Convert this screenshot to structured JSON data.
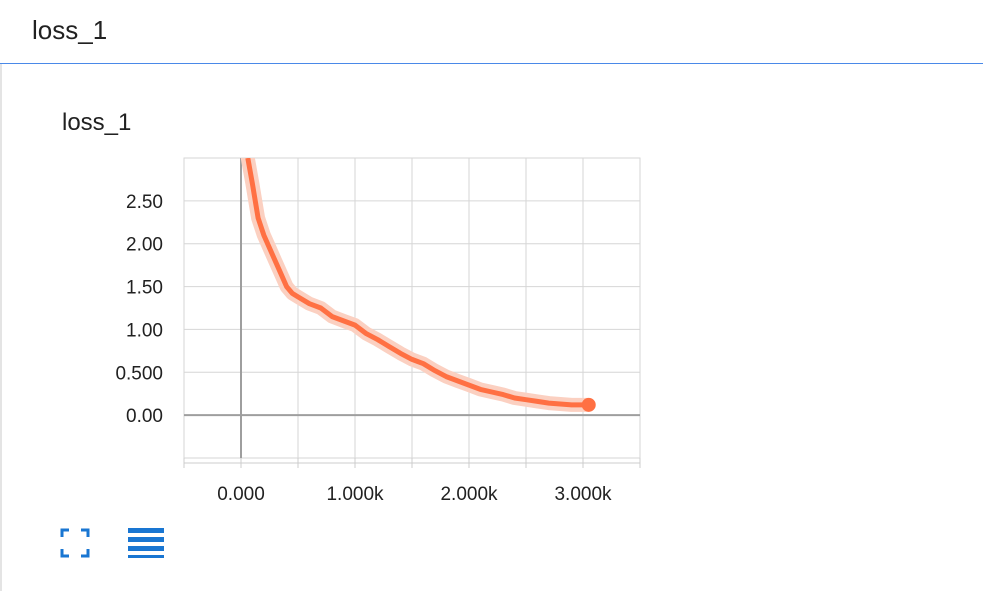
{
  "header": {
    "title": "loss_1"
  },
  "card": {
    "title": "loss_1",
    "toolbar": {
      "expand_icon": "fullscreen-icon",
      "data_icon": "list-icon"
    }
  },
  "colors": {
    "accent": "#4a89e8",
    "series": "#ff7043",
    "series_raw": "#fbd0c1",
    "grid": "#d6d6d6",
    "axis": "#9e9e9e",
    "icon": "#1976d2"
  },
  "chart_data": {
    "type": "line",
    "title": "loss_1",
    "xlabel": "",
    "ylabel": "",
    "xlim": [
      -500,
      3500
    ],
    "ylim": [
      -0.5,
      3.0
    ],
    "x_ticks": [
      0,
      1000,
      2000,
      3000
    ],
    "x_tick_labels": [
      "0.000",
      "1.000k",
      "2.000k",
      "3.000k"
    ],
    "y_ticks": [
      0,
      0.5,
      1.0,
      1.5,
      2.0,
      2.5
    ],
    "y_tick_labels": [
      "0.00",
      "0.500",
      "1.00",
      "1.50",
      "2.00",
      "2.50"
    ],
    "grid": true,
    "series": [
      {
        "x": [
          60,
          100,
          150,
          200,
          250,
          300,
          350,
          400,
          450,
          500,
          600,
          700,
          800,
          900,
          1000,
          1100,
          1200,
          1300,
          1400,
          1500,
          1600,
          1700,
          1800,
          1900,
          2000,
          2100,
          2200,
          2300,
          2400,
          2500,
          2600,
          2700,
          2800,
          2900,
          3000,
          3050
        ],
        "values": [
          3.0,
          2.7,
          2.3,
          2.1,
          1.95,
          1.8,
          1.65,
          1.5,
          1.42,
          1.38,
          1.3,
          1.25,
          1.15,
          1.1,
          1.05,
          0.95,
          0.88,
          0.8,
          0.72,
          0.65,
          0.6,
          0.52,
          0.45,
          0.4,
          0.35,
          0.3,
          0.27,
          0.24,
          0.2,
          0.18,
          0.16,
          0.14,
          0.13,
          0.12,
          0.12,
          0.12
        ]
      }
    ]
  }
}
